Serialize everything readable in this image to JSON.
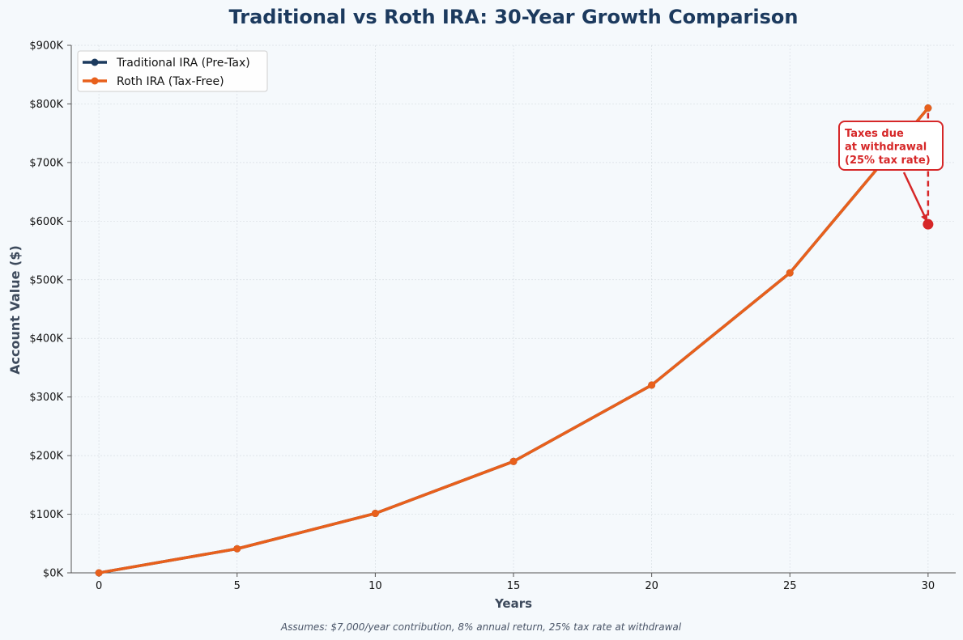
{
  "chart_data": {
    "type": "line",
    "title": "Traditional vs Roth IRA: 30-Year Growth Comparison",
    "xlabel": "Years",
    "ylabel": "Account Value ($)",
    "x": [
      0,
      5,
      10,
      15,
      20,
      25,
      30
    ],
    "xticks": [
      0,
      5,
      10,
      15,
      20,
      25,
      30
    ],
    "xlim": [
      -1,
      31
    ],
    "yticks": [
      0,
      100000,
      200000,
      300000,
      400000,
      500000,
      600000,
      700000,
      800000,
      900000
    ],
    "ytick_labels": [
      "$0K",
      "$100K",
      "$200K",
      "$300K",
      "$400K",
      "$500K",
      "$600K",
      "$700K",
      "$800K",
      "$900K"
    ],
    "ylim": [
      0,
      900000
    ],
    "grid": true,
    "legend_position": "top-left",
    "series": [
      {
        "name": "Traditional IRA (Pre-Tax)",
        "color": "#1c3a5e",
        "values": [
          0,
          41067,
          101406,
          190068,
          320336,
          511736,
          792950
        ]
      },
      {
        "name": "Roth IRA (Tax-Free)",
        "color": "#e8601c",
        "values": [
          0,
          41067,
          101406,
          190068,
          320336,
          511736,
          792950
        ]
      }
    ],
    "after_tax_point": {
      "x": 30,
      "y": 594713,
      "color": "#d62728"
    },
    "annotation": {
      "lines": [
        "Taxes due",
        "at withdrawal",
        "(25% tax rate)"
      ],
      "color": "#d62728"
    },
    "footnote": "Assumes: $7,000/year contribution, 8% annual return, 25% tax rate at withdrawal"
  }
}
